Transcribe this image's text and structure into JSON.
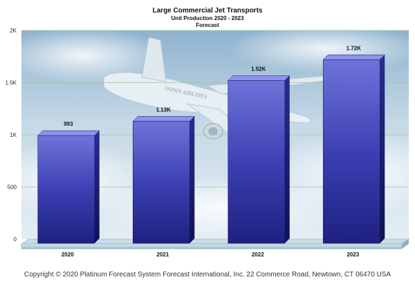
{
  "chart_data": {
    "type": "bar",
    "title": "Large Commercial Jet Transports",
    "subtitle": "Unit Production 2020 - 2023",
    "subtitle2": "Forecast",
    "categories": [
      "2020",
      "2021",
      "2022",
      "2023"
    ],
    "values": [
      993,
      1130,
      1520,
      1720
    ],
    "data_labels": [
      "993",
      "1.13K",
      "1.52K",
      "1.72K"
    ],
    "yticks": [
      0,
      500,
      1000,
      1500,
      2000
    ],
    "ytick_labels": [
      "0",
      "500",
      "1K",
      "1.5K",
      "2K"
    ],
    "ylim": [
      0,
      2000
    ],
    "grid": true,
    "bar_color": "#4a4fc4",
    "background": "airplane-in-sky-photo",
    "airplane_livery_text": "JAPAN AIRLINES"
  },
  "footer": "Copyright © 2020  Platinum Forecast System  Forecast International, Inc.  22 Commerce Road, Newtown, CT 06470 USA"
}
